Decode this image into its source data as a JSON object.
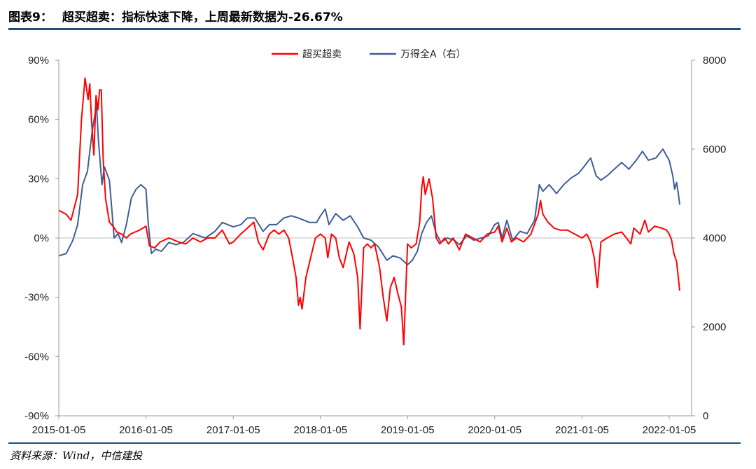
{
  "title": {
    "fig_label": "图表9：",
    "text": "超买超卖：指标快速下降，上周最新数据为-26.67%"
  },
  "source": "资料来源：Wind，中信建投",
  "chart_data": {
    "type": "line",
    "x_tick_labels": [
      "2015-01-05",
      "2016-01-05",
      "2017-01-05",
      "2018-01-05",
      "2019-01-05",
      "2020-01-05",
      "2021-01-05",
      "2022-01-05"
    ],
    "y_left": {
      "ticks": [
        -90,
        -60,
        -30,
        0,
        30,
        60,
        90
      ],
      "tick_labels": [
        "-90%",
        "-60%",
        "-30%",
        "0%",
        "30%",
        "60%",
        "90%"
      ],
      "ylim": [
        -90,
        90
      ],
      "unit": "%"
    },
    "y_right": {
      "ticks": [
        0,
        2000,
        4000,
        6000,
        8000
      ],
      "tick_labels": [
        "0",
        "2000",
        "4000",
        "6000",
        "8000"
      ],
      "ylim": [
        0,
        8000
      ]
    },
    "legend_position": "top-center",
    "series": [
      {
        "name": "超买超卖",
        "axis": "left",
        "color": "#ff0000",
        "points": [
          [
            "2015-01-05",
            14
          ],
          [
            "2015-02-05",
            12
          ],
          [
            "2015-02-25",
            9
          ],
          [
            "2015-03-10",
            15
          ],
          [
            "2015-03-25",
            22
          ],
          [
            "2015-04-10",
            60
          ],
          [
            "2015-04-25",
            81
          ],
          [
            "2015-05-08",
            70
          ],
          [
            "2015-05-15",
            78
          ],
          [
            "2015-05-22",
            60
          ],
          [
            "2015-06-01",
            42
          ],
          [
            "2015-06-10",
            72
          ],
          [
            "2015-06-18",
            65
          ],
          [
            "2015-06-25",
            75
          ],
          [
            "2015-07-02",
            75
          ],
          [
            "2015-07-10",
            40
          ],
          [
            "2015-07-20",
            20
          ],
          [
            "2015-08-05",
            8
          ],
          [
            "2015-08-20",
            6
          ],
          [
            "2015-09-05",
            3
          ],
          [
            "2015-09-25",
            2
          ],
          [
            "2015-10-15",
            0
          ],
          [
            "2015-11-01",
            2
          ],
          [
            "2015-11-20",
            3
          ],
          [
            "2015-12-10",
            4
          ],
          [
            "2016-01-05",
            6
          ],
          [
            "2016-01-20",
            -4
          ],
          [
            "2016-02-10",
            -5
          ],
          [
            "2016-03-05",
            -2
          ],
          [
            "2016-04-10",
            0
          ],
          [
            "2016-05-20",
            -2
          ],
          [
            "2016-06-20",
            -3
          ],
          [
            "2016-07-20",
            0
          ],
          [
            "2016-08-20",
            -2
          ],
          [
            "2016-09-20",
            0
          ],
          [
            "2016-10-20",
            0
          ],
          [
            "2016-11-20",
            4
          ],
          [
            "2016-12-20",
            -3
          ],
          [
            "2017-01-05",
            -2
          ],
          [
            "2017-02-05",
            2
          ],
          [
            "2017-03-05",
            5
          ],
          [
            "2017-04-01",
            8
          ],
          [
            "2017-04-20",
            -2
          ],
          [
            "2017-05-10",
            -6
          ],
          [
            "2017-06-05",
            2
          ],
          [
            "2017-06-25",
            4
          ],
          [
            "2017-07-15",
            2
          ],
          [
            "2017-08-05",
            4
          ],
          [
            "2017-08-25",
            0
          ],
          [
            "2017-09-10",
            -10
          ],
          [
            "2017-09-25",
            -20
          ],
          [
            "2017-10-05",
            -34
          ],
          [
            "2017-10-12",
            -30
          ],
          [
            "2017-10-20",
            -36
          ],
          [
            "2017-11-05",
            -20
          ],
          [
            "2017-11-25",
            -10
          ],
          [
            "2017-12-15",
            0
          ],
          [
            "2018-01-05",
            2
          ],
          [
            "2018-01-25",
            0
          ],
          [
            "2018-02-05",
            -10
          ],
          [
            "2018-02-20",
            2
          ],
          [
            "2018-03-10",
            0
          ],
          [
            "2018-03-25",
            -10
          ],
          [
            "2018-04-10",
            -15
          ],
          [
            "2018-05-05",
            -2
          ],
          [
            "2018-05-25",
            -8
          ],
          [
            "2018-06-10",
            -20
          ],
          [
            "2018-06-20",
            -46
          ],
          [
            "2018-07-05",
            -5
          ],
          [
            "2018-07-20",
            -3
          ],
          [
            "2018-08-05",
            -5
          ],
          [
            "2018-08-20",
            -3
          ],
          [
            "2018-09-10",
            -15
          ],
          [
            "2018-09-25",
            -30
          ],
          [
            "2018-10-10",
            -42
          ],
          [
            "2018-10-25",
            -25
          ],
          [
            "2018-11-10",
            -20
          ],
          [
            "2018-11-25",
            -28
          ],
          [
            "2018-12-10",
            -35
          ],
          [
            "2018-12-20",
            -54
          ],
          [
            "2019-01-05",
            -3
          ],
          [
            "2019-01-20",
            -5
          ],
          [
            "2019-02-10",
            -3
          ],
          [
            "2019-02-25",
            8
          ],
          [
            "2019-03-05",
            25
          ],
          [
            "2019-03-12",
            31
          ],
          [
            "2019-03-20",
            22
          ],
          [
            "2019-04-05",
            30
          ],
          [
            "2019-04-20",
            20
          ],
          [
            "2019-05-05",
            0
          ],
          [
            "2019-05-20",
            -3
          ],
          [
            "2019-06-10",
            0
          ],
          [
            "2019-06-25",
            -3
          ],
          [
            "2019-07-15",
            0
          ],
          [
            "2019-08-10",
            -6
          ],
          [
            "2019-09-05",
            2
          ],
          [
            "2019-10-05",
            0
          ],
          [
            "2019-11-05",
            -2
          ],
          [
            "2019-12-05",
            2
          ],
          [
            "2020-01-05",
            3
          ],
          [
            "2020-01-20",
            6
          ],
          [
            "2020-02-05",
            -2
          ],
          [
            "2020-02-25",
            5
          ],
          [
            "2020-03-15",
            -2
          ],
          [
            "2020-04-05",
            0
          ],
          [
            "2020-05-05",
            -2
          ],
          [
            "2020-06-05",
            2
          ],
          [
            "2020-07-05",
            12
          ],
          [
            "2020-07-15",
            19
          ],
          [
            "2020-07-25",
            12
          ],
          [
            "2020-08-15",
            8
          ],
          [
            "2020-09-10",
            5
          ],
          [
            "2020-10-05",
            4
          ],
          [
            "2020-11-05",
            4
          ],
          [
            "2020-12-05",
            2
          ],
          [
            "2021-01-05",
            0
          ],
          [
            "2021-01-25",
            2
          ],
          [
            "2021-02-10",
            -2
          ],
          [
            "2021-02-25",
            -10
          ],
          [
            "2021-03-10",
            -25
          ],
          [
            "2021-03-25",
            -2
          ],
          [
            "2021-04-20",
            0
          ],
          [
            "2021-05-20",
            2
          ],
          [
            "2021-06-20",
            3
          ],
          [
            "2021-07-10",
            0
          ],
          [
            "2021-07-28",
            -3
          ],
          [
            "2021-08-10",
            5
          ],
          [
            "2021-09-05",
            2
          ],
          [
            "2021-09-25",
            9
          ],
          [
            "2021-10-10",
            3
          ],
          [
            "2021-11-05",
            6
          ],
          [
            "2021-12-05",
            5
          ],
          [
            "2021-12-25",
            4
          ],
          [
            "2022-01-05",
            2
          ],
          [
            "2022-01-15",
            -1
          ],
          [
            "2022-01-25",
            -8
          ],
          [
            "2022-02-05",
            -12
          ],
          [
            "2022-02-12",
            -20
          ],
          [
            "2022-02-18",
            -26.67
          ]
        ]
      },
      {
        "name": "万得全A（右）",
        "axis": "right",
        "color": "#3d5f95",
        "points": [
          [
            "2015-01-05",
            3600
          ],
          [
            "2015-02-05",
            3650
          ],
          [
            "2015-03-05",
            3950
          ],
          [
            "2015-03-25",
            4300
          ],
          [
            "2015-04-15",
            5200
          ],
          [
            "2015-05-05",
            5500
          ],
          [
            "2015-05-25",
            6400
          ],
          [
            "2015-06-12",
            7000
          ],
          [
            "2015-06-20",
            6200
          ],
          [
            "2015-07-05",
            5200
          ],
          [
            "2015-07-15",
            5600
          ],
          [
            "2015-08-05",
            5300
          ],
          [
            "2015-08-25",
            4000
          ],
          [
            "2015-09-10",
            4100
          ],
          [
            "2015-09-25",
            3900
          ],
          [
            "2015-10-15",
            4300
          ],
          [
            "2015-11-05",
            4900
          ],
          [
            "2015-11-25",
            5100
          ],
          [
            "2015-12-15",
            5200
          ],
          [
            "2016-01-05",
            5100
          ],
          [
            "2016-01-15",
            4300
          ],
          [
            "2016-01-28",
            3650
          ],
          [
            "2016-02-15",
            3750
          ],
          [
            "2016-03-10",
            3700
          ],
          [
            "2016-04-10",
            3900
          ],
          [
            "2016-05-10",
            3850
          ],
          [
            "2016-06-10",
            3900
          ],
          [
            "2016-07-20",
            4100
          ],
          [
            "2016-09-10",
            4000
          ],
          [
            "2016-10-20",
            4150
          ],
          [
            "2016-11-20",
            4350
          ],
          [
            "2017-01-05",
            4250
          ],
          [
            "2017-02-05",
            4300
          ],
          [
            "2017-03-05",
            4450
          ],
          [
            "2017-04-05",
            4450
          ],
          [
            "2017-05-10",
            4150
          ],
          [
            "2017-06-05",
            4300
          ],
          [
            "2017-07-05",
            4300
          ],
          [
            "2017-08-05",
            4450
          ],
          [
            "2017-09-05",
            4500
          ],
          [
            "2017-10-05",
            4450
          ],
          [
            "2017-11-20",
            4350
          ],
          [
            "2017-12-20",
            4350
          ],
          [
            "2018-01-05",
            4500
          ],
          [
            "2018-01-25",
            4650
          ],
          [
            "2018-02-10",
            4300
          ],
          [
            "2018-03-10",
            4550
          ],
          [
            "2018-04-10",
            4400
          ],
          [
            "2018-05-10",
            4500
          ],
          [
            "2018-06-10",
            4250
          ],
          [
            "2018-07-05",
            4000
          ],
          [
            "2018-08-05",
            3950
          ],
          [
            "2018-09-05",
            3800
          ],
          [
            "2018-10-10",
            3500
          ],
          [
            "2018-11-05",
            3600
          ],
          [
            "2018-12-05",
            3550
          ],
          [
            "2019-01-05",
            3400
          ],
          [
            "2019-01-25",
            3500
          ],
          [
            "2019-02-15",
            3700
          ],
          [
            "2019-03-05",
            4100
          ],
          [
            "2019-03-25",
            4350
          ],
          [
            "2019-04-15",
            4500
          ],
          [
            "2019-05-05",
            4100
          ],
          [
            "2019-05-25",
            3900
          ],
          [
            "2019-06-20",
            4000
          ],
          [
            "2019-07-20",
            3950
          ],
          [
            "2019-08-10",
            3850
          ],
          [
            "2019-09-10",
            4050
          ],
          [
            "2019-10-10",
            3950
          ],
          [
            "2019-11-10",
            4000
          ],
          [
            "2019-12-10",
            4050
          ],
          [
            "2020-01-05",
            4300
          ],
          [
            "2020-01-20",
            4350
          ],
          [
            "2020-02-05",
            4000
          ],
          [
            "2020-02-25",
            4400
          ],
          [
            "2020-03-20",
            3950
          ],
          [
            "2020-04-20",
            4150
          ],
          [
            "2020-05-20",
            4100
          ],
          [
            "2020-06-20",
            4400
          ],
          [
            "2020-07-10",
            5200
          ],
          [
            "2020-07-25",
            5050
          ],
          [
            "2020-08-20",
            5200
          ],
          [
            "2020-09-20",
            5000
          ],
          [
            "2020-10-20",
            5200
          ],
          [
            "2020-11-20",
            5350
          ],
          [
            "2020-12-20",
            5450
          ],
          [
            "2021-01-05",
            5550
          ],
          [
            "2021-02-10",
            5800
          ],
          [
            "2021-03-05",
            5400
          ],
          [
            "2021-03-25",
            5300
          ],
          [
            "2021-04-20",
            5400
          ],
          [
            "2021-05-20",
            5550
          ],
          [
            "2021-06-20",
            5700
          ],
          [
            "2021-07-20",
            5550
          ],
          [
            "2021-08-20",
            5750
          ],
          [
            "2021-09-15",
            5950
          ],
          [
            "2021-10-10",
            5750
          ],
          [
            "2021-11-10",
            5800
          ],
          [
            "2021-12-10",
            6000
          ],
          [
            "2021-12-25",
            5850
          ],
          [
            "2022-01-05",
            5750
          ],
          [
            "2022-01-20",
            5400
          ],
          [
            "2022-01-28",
            5100
          ],
          [
            "2022-02-05",
            5250
          ],
          [
            "2022-02-12",
            5000
          ],
          [
            "2022-02-18",
            4750
          ]
        ]
      }
    ]
  }
}
